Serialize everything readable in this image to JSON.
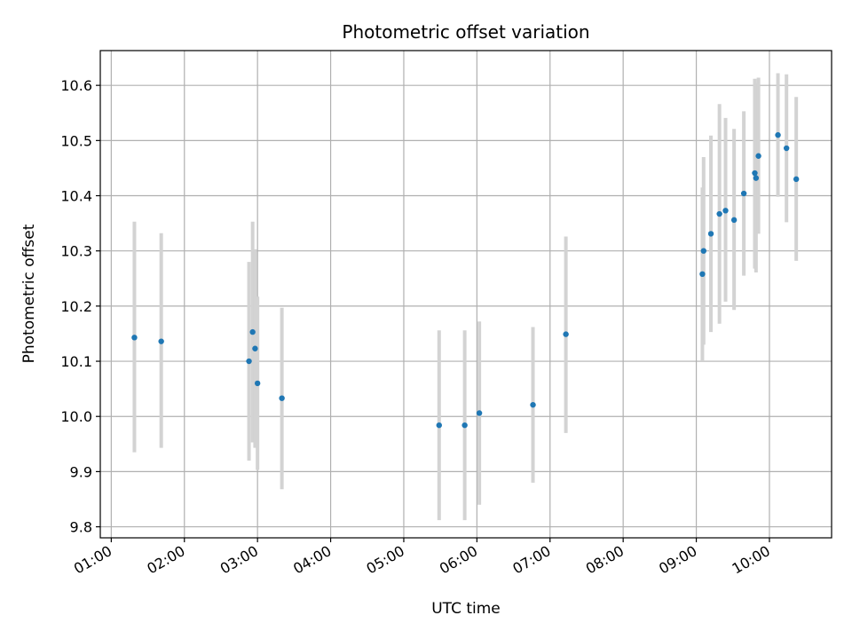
{
  "chart_data": {
    "type": "scatter",
    "title": "Photometric offset variation",
    "xlabel": "UTC time",
    "ylabel": "Photometric offset",
    "xlim": [
      "00:51",
      "10:51"
    ],
    "ylim": [
      9.78,
      10.663
    ],
    "x_ticks": [
      "01:00",
      "02:00",
      "03:00",
      "04:00",
      "05:00",
      "06:00",
      "07:00",
      "08:00",
      "09:00",
      "10:00"
    ],
    "y_ticks": [
      9.8,
      9.9,
      10.0,
      10.1,
      10.2,
      10.3,
      10.4,
      10.5,
      10.6
    ],
    "y_tick_labels": [
      "9.8",
      "9.9",
      "10.0",
      "10.1",
      "10.2",
      "10.3",
      "10.4",
      "10.5",
      "10.6"
    ],
    "grid": true,
    "errorbar_color": "#d3d3d3",
    "marker_color": "#1f77b4",
    "points": [
      {
        "time": "01:19",
        "y": 10.143,
        "y_low": 9.935,
        "y_high": 10.353
      },
      {
        "time": "01:41",
        "y": 10.136,
        "y_low": 9.943,
        "y_high": 10.332
      },
      {
        "time": "02:53",
        "y": 10.1,
        "y_low": 9.92,
        "y_high": 10.28
      },
      {
        "time": "02:56",
        "y": 10.153,
        "y_low": 9.953,
        "y_high": 10.353
      },
      {
        "time": "02:58",
        "y": 10.123,
        "y_low": 9.943,
        "y_high": 10.303
      },
      {
        "time": "03:00",
        "y": 10.06,
        "y_low": 9.903,
        "y_high": 10.217
      },
      {
        "time": "03:20",
        "y": 10.033,
        "y_low": 9.868,
        "y_high": 10.197
      },
      {
        "time": "05:29",
        "y": 9.984,
        "y_low": 9.812,
        "y_high": 10.156
      },
      {
        "time": "05:50",
        "y": 9.984,
        "y_low": 9.812,
        "y_high": 10.156
      },
      {
        "time": "06:02",
        "y": 10.006,
        "y_low": 9.84,
        "y_high": 10.172
      },
      {
        "time": "06:46",
        "y": 10.021,
        "y_low": 9.88,
        "y_high": 10.162
      },
      {
        "time": "07:13",
        "y": 10.149,
        "y_low": 9.97,
        "y_high": 10.326
      },
      {
        "time": "09:05",
        "y": 10.258,
        "y_low": 10.1,
        "y_high": 10.415
      },
      {
        "time": "09:06",
        "y": 10.3,
        "y_low": 10.13,
        "y_high": 10.47
      },
      {
        "time": "09:12",
        "y": 10.331,
        "y_low": 10.153,
        "y_high": 10.509
      },
      {
        "time": "09:19",
        "y": 10.367,
        "y_low": 10.168,
        "y_high": 10.566
      },
      {
        "time": "09:24",
        "y": 10.373,
        "y_low": 10.208,
        "y_high": 10.541
      },
      {
        "time": "09:31",
        "y": 10.356,
        "y_low": 10.193,
        "y_high": 10.521
      },
      {
        "time": "09:39",
        "y": 10.404,
        "y_low": 10.255,
        "y_high": 10.553
      },
      {
        "time": "09:48",
        "y": 10.441,
        "y_low": 10.268,
        "y_high": 10.612
      },
      {
        "time": "09:49",
        "y": 10.432,
        "y_low": 10.261,
        "y_high": 10.604
      },
      {
        "time": "09:51",
        "y": 10.472,
        "y_low": 10.331,
        "y_high": 10.614
      },
      {
        "time": "10:07",
        "y": 10.51,
        "y_low": 10.398,
        "y_high": 10.622
      },
      {
        "time": "10:14",
        "y": 10.486,
        "y_low": 10.352,
        "y_high": 10.62
      },
      {
        "time": "10:22",
        "y": 10.43,
        "y_low": 10.282,
        "y_high": 10.579
      }
    ]
  }
}
